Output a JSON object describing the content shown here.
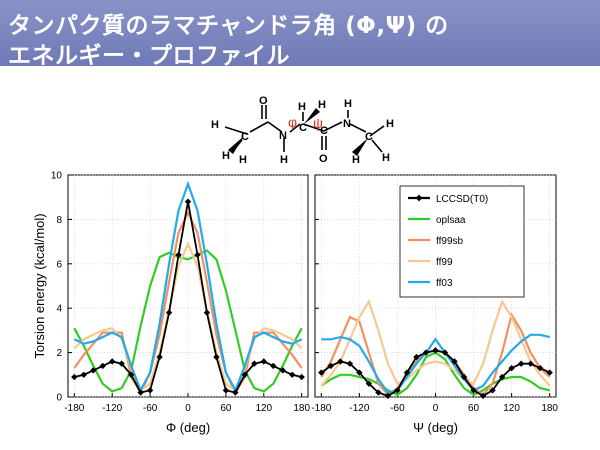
{
  "slide": {
    "title_line1": "タンパク質のラマチャンドラ角 (Φ,Ψ) の",
    "title_line2": "エネルギー・プロファイル"
  },
  "molecule": {
    "atoms": [
      "H",
      "H",
      "H",
      "C",
      "O",
      "N",
      "H",
      "H",
      "C",
      "H",
      "C",
      "O",
      "N",
      "H",
      "H",
      "C",
      "H",
      "H"
    ],
    "phi_symbol": "φ",
    "psi_symbol": "ψ",
    "accent_color": "#e03020"
  },
  "chart_data": [
    {
      "type": "line",
      "xlabel": "Φ (deg)",
      "ylabel": "Torsion energy (kcal/mol)",
      "xlim": [
        -190,
        190
      ],
      "ylim": [
        0,
        10
      ],
      "xticks": [
        -180,
        -120,
        -60,
        0,
        60,
        120,
        180
      ],
      "yticks": [
        0,
        2,
        4,
        6,
        8,
        10
      ],
      "grid": true,
      "series": [
        {
          "name": "oplsaa",
          "color": "#33cc22",
          "marker": "none",
          "x": [
            -180,
            -165,
            -150,
            -135,
            -120,
            -105,
            -90,
            -75,
            -60,
            -45,
            -30,
            -15,
            0,
            15,
            30,
            45,
            60,
            75,
            90,
            105,
            120,
            135,
            150,
            165,
            180
          ],
          "y": [
            3.1,
            2.3,
            1.4,
            0.6,
            0.25,
            0.4,
            1.2,
            3.2,
            5.0,
            6.3,
            6.5,
            6.3,
            6.2,
            6.4,
            6.6,
            6.2,
            4.8,
            3.0,
            1.2,
            0.4,
            0.25,
            0.6,
            1.4,
            2.3,
            3.1
          ]
        },
        {
          "name": "ff99sb",
          "color": "#f29060",
          "marker": "none",
          "x": [
            -180,
            -165,
            -150,
            -135,
            -120,
            -105,
            -90,
            -75,
            -60,
            -45,
            -30,
            -15,
            0,
            15,
            30,
            45,
            60,
            75,
            90,
            105,
            120,
            135,
            150,
            165,
            180
          ],
          "y": [
            1.3,
            1.9,
            2.4,
            2.9,
            2.9,
            2.9,
            0.9,
            0.2,
            1.1,
            2.8,
            5.2,
            7.4,
            8.3,
            7.4,
            5.2,
            2.8,
            1.1,
            0.2,
            0.9,
            2.9,
            2.9,
            2.9,
            2.4,
            1.9,
            1.3
          ]
        },
        {
          "name": "ff99",
          "color": "#f8c890",
          "marker": "none",
          "x": [
            -180,
            -165,
            -150,
            -135,
            -120,
            -105,
            -90,
            -75,
            -60,
            -45,
            -30,
            -15,
            0,
            15,
            30,
            45,
            60,
            75,
            90,
            105,
            120,
            135,
            150,
            165,
            180
          ],
          "y": [
            2.2,
            2.6,
            2.8,
            3.0,
            3.1,
            2.6,
            1.3,
            0.3,
            0.6,
            2.0,
            3.9,
            5.9,
            6.9,
            5.9,
            3.9,
            2.0,
            0.6,
            0.3,
            1.3,
            2.6,
            3.1,
            3.0,
            2.8,
            2.6,
            2.2
          ]
        },
        {
          "name": "ff03",
          "color": "#22aaee",
          "marker": "none",
          "x": [
            -180,
            -165,
            -150,
            -135,
            -120,
            -105,
            -90,
            -75,
            -60,
            -45,
            -30,
            -15,
            0,
            15,
            30,
            45,
            60,
            75,
            90,
            105,
            120,
            135,
            150,
            165,
            180
          ],
          "y": [
            2.6,
            2.4,
            2.5,
            2.7,
            2.9,
            2.7,
            1.4,
            0.3,
            1.1,
            3.3,
            6.0,
            8.4,
            9.6,
            8.4,
            6.0,
            3.3,
            1.1,
            0.3,
            1.4,
            2.7,
            2.9,
            2.7,
            2.5,
            2.4,
            2.6
          ]
        },
        {
          "name": "LCCSD(T0)",
          "color": "#000000",
          "marker": "diamond",
          "x": [
            -180,
            -165,
            -150,
            -135,
            -120,
            -105,
            -90,
            -75,
            -60,
            -45,
            -30,
            -15,
            0,
            15,
            30,
            45,
            60,
            75,
            90,
            105,
            120,
            135,
            150,
            165,
            180
          ],
          "y": [
            0.9,
            1.0,
            1.2,
            1.4,
            1.6,
            1.5,
            1.0,
            0.2,
            0.3,
            1.8,
            3.8,
            6.4,
            8.8,
            6.4,
            3.8,
            1.8,
            0.3,
            0.2,
            1.0,
            1.5,
            1.6,
            1.4,
            1.2,
            1.0,
            0.9
          ]
        }
      ]
    },
    {
      "type": "line",
      "xlabel": "Ψ (deg)",
      "ylabel": "",
      "xlim": [
        -190,
        190
      ],
      "ylim": [
        0,
        10
      ],
      "xticks": [
        -180,
        -120,
        -60,
        0,
        60,
        120,
        180
      ],
      "grid": true,
      "legend": "top-right",
      "series": [
        {
          "name": "oplsaa",
          "color": "#33cc22",
          "marker": "none",
          "x": [
            -180,
            -165,
            -150,
            -135,
            -120,
            -105,
            -90,
            -75,
            -60,
            -45,
            -30,
            -15,
            0,
            15,
            30,
            45,
            60,
            75,
            90,
            105,
            120,
            135,
            150,
            165,
            180
          ],
          "y": [
            0.5,
            0.8,
            1.0,
            1.0,
            0.9,
            0.8,
            0.6,
            0.3,
            0.1,
            0.4,
            1.0,
            1.8,
            2.0,
            1.7,
            1.0,
            0.4,
            0.1,
            0.3,
            0.6,
            0.8,
            0.9,
            0.9,
            0.7,
            0.4,
            0.3
          ]
        },
        {
          "name": "ff99sb",
          "color": "#f29060",
          "marker": "none",
          "x": [
            -180,
            -165,
            -150,
            -135,
            -120,
            -105,
            -90,
            -75,
            -60,
            -45,
            -30,
            -15,
            0,
            15,
            30,
            45,
            60,
            75,
            90,
            105,
            120,
            135,
            150,
            165,
            180
          ],
          "y": [
            0.9,
            1.6,
            2.6,
            3.6,
            3.4,
            2.0,
            0.6,
            0.1,
            0.4,
            1.0,
            1.6,
            2.0,
            2.1,
            2.0,
            1.6,
            1.0,
            0.4,
            0.1,
            0.6,
            2.0,
            3.7,
            3.0,
            2.0,
            1.3,
            0.9
          ]
        },
        {
          "name": "ff99",
          "color": "#f8c890",
          "marker": "none",
          "x": [
            -180,
            -165,
            -150,
            -135,
            -120,
            -105,
            -90,
            -75,
            -60,
            -45,
            -30,
            -15,
            0,
            15,
            30,
            45,
            60,
            75,
            90,
            105,
            120,
            135,
            150,
            165,
            180
          ],
          "y": [
            0.5,
            1.0,
            1.6,
            2.6,
            3.6,
            4.3,
            3.0,
            1.5,
            0.6,
            0.8,
            1.2,
            1.5,
            1.6,
            1.5,
            1.2,
            0.8,
            0.6,
            1.5,
            3.0,
            4.3,
            3.6,
            2.6,
            1.6,
            1.0,
            0.5
          ]
        },
        {
          "name": "ff03",
          "color": "#22aaee",
          "marker": "none",
          "x": [
            -180,
            -165,
            -150,
            -135,
            -120,
            -105,
            -90,
            -75,
            -60,
            -45,
            -30,
            -15,
            0,
            15,
            30,
            45,
            60,
            75,
            90,
            105,
            120,
            135,
            150,
            165,
            180
          ],
          "y": [
            2.6,
            2.6,
            2.7,
            2.6,
            2.3,
            1.6,
            0.8,
            0.2,
            0.3,
            0.9,
            1.5,
            2.0,
            2.6,
            2.0,
            1.4,
            0.8,
            0.3,
            0.5,
            1.1,
            1.6,
            2.1,
            2.5,
            2.8,
            2.8,
            2.7
          ]
        },
        {
          "name": "LCCSD(T0)",
          "color": "#000000",
          "marker": "diamond",
          "x": [
            -180,
            -165,
            -150,
            -135,
            -120,
            -105,
            -90,
            -75,
            -60,
            -45,
            -30,
            -15,
            0,
            15,
            30,
            45,
            60,
            75,
            90,
            105,
            120,
            135,
            150,
            165,
            180
          ],
          "y": [
            1.1,
            1.4,
            1.6,
            1.5,
            1.1,
            0.6,
            0.2,
            0.05,
            0.3,
            1.1,
            1.8,
            2.0,
            2.1,
            2.0,
            1.6,
            0.9,
            0.3,
            0.05,
            0.3,
            0.9,
            1.3,
            1.5,
            1.5,
            1.3,
            1.1
          ]
        }
      ]
    }
  ]
}
